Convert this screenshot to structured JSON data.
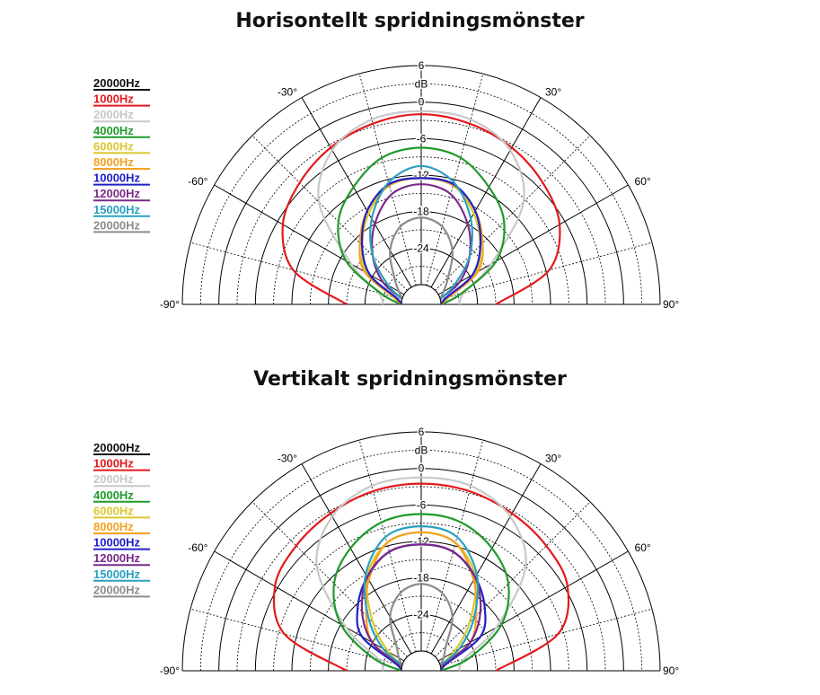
{
  "chart_data": [
    {
      "type": "polar",
      "title": "Horisontellt spridningsmönster",
      "radial_unit": "dB",
      "radial_ticks": [
        "6",
        "0",
        "-6",
        "-12",
        "-18",
        "-24"
      ],
      "angle_ticks": [
        "-90°",
        "-60°",
        "-30°",
        "30°",
        "60°",
        "90°"
      ],
      "rlim": [
        -30,
        6
      ],
      "angle_range_deg": [
        -90,
        90
      ],
      "legend_position": "top-left",
      "angles_deg": [
        -90,
        -75,
        -60,
        -45,
        -30,
        -15,
        0,
        15,
        30,
        45,
        60,
        75,
        90
      ],
      "series": [
        {
          "name": "20000Hz",
          "color": "#111111",
          "values": []
        },
        {
          "name": "1000Hz",
          "color": "#e31a1c",
          "values": [
            -21.0,
            -11.5,
            -7.0,
            -5.0,
            -3.5,
            -2.5,
            -2.0,
            -2.5,
            -3.5,
            -5.0,
            -7.0,
            -11.5,
            -21.0
          ]
        },
        {
          "name": "2000Hz",
          "color": "#c8c8c8",
          "values": [
            -27.0,
            -26.0,
            -20.0,
            -9.5,
            -4.0,
            -1.8,
            -1.5,
            -1.8,
            -4.0,
            -9.5,
            -20.0,
            -26.0,
            -27.0
          ]
        },
        {
          "name": "4000Hz",
          "color": "#1f9a2a",
          "values": [
            -30.0,
            -26.5,
            -19.0,
            -14.0,
            -11.0,
            -8.3,
            -7.5,
            -8.3,
            -11.0,
            -14.0,
            -19.0,
            -26.5,
            -30.0
          ]
        },
        {
          "name": "6000Hz",
          "color": "#d9c82c",
          "values": [
            -30.0,
            -29.0,
            -23.0,
            -19.5,
            -16.0,
            -13.0,
            -12.5,
            -13.0,
            -16.0,
            -19.5,
            -23.0,
            -29.0,
            -30.0
          ]
        },
        {
          "name": "8000Hz",
          "color": "#f5a021",
          "values": [
            -30.0,
            -28.5,
            -22.5,
            -19.0,
            -15.5,
            -13.0,
            -12.5,
            -13.0,
            -15.5,
            -19.0,
            -22.5,
            -28.5,
            -30.0
          ]
        },
        {
          "name": "10000Hz",
          "color": "#2020c8",
          "values": [
            -30.0,
            -29.0,
            -23.5,
            -19.5,
            -15.5,
            -12.8,
            -12.5,
            -12.8,
            -15.5,
            -19.5,
            -23.5,
            -29.0,
            -30.0
          ]
        },
        {
          "name": "12000Hz",
          "color": "#7a2a8a",
          "values": [
            -30.0,
            -30.0,
            -26.0,
            -22.0,
            -18.0,
            -14.5,
            -13.5,
            -14.5,
            -18.0,
            -22.0,
            -26.0,
            -30.0,
            -30.0
          ]
        },
        {
          "name": "15000Hz",
          "color": "#2a9fc0",
          "values": [
            -30.0,
            -30.0,
            -27.0,
            -22.0,
            -17.0,
            -12.5,
            -10.5,
            -12.5,
            -17.0,
            -22.0,
            -27.0,
            -30.0,
            -30.0
          ]
        },
        {
          "name": "20000Hz",
          "color": "#8c8c8c",
          "values": [
            -30.0,
            -30.0,
            -29.0,
            -27.0,
            -23.0,
            -20.0,
            -19.0,
            -20.0,
            -23.0,
            -27.0,
            -29.0,
            -30.0,
            -30.0
          ]
        }
      ]
    },
    {
      "type": "polar",
      "title": "Vertikalt spridningsmönster",
      "radial_unit": "dB",
      "radial_ticks": [
        "6",
        "0",
        "-6",
        "-12",
        "-18",
        "-24"
      ],
      "angle_ticks": [
        "-90°",
        "-60°",
        "-30°",
        "30°",
        "60°",
        "90°"
      ],
      "rlim": [
        -30,
        6
      ],
      "angle_range_deg": [
        -90,
        90
      ],
      "legend_position": "top-left",
      "angles_deg": [
        -90,
        -75,
        -60,
        -45,
        -30,
        -15,
        0,
        15,
        30,
        45,
        60,
        75,
        90
      ],
      "series": [
        {
          "name": "20000Hz",
          "color": "#111111",
          "values": []
        },
        {
          "name": "1000Hz",
          "color": "#e31a1c",
          "values": [
            -21.0,
            -10.0,
            -5.5,
            -4.2,
            -3.4,
            -2.7,
            -2.5,
            -2.7,
            -3.4,
            -4.2,
            -5.5,
            -10.0,
            -21.0
          ]
        },
        {
          "name": "2000Hz",
          "color": "#c8c8c8",
          "values": [
            -27.0,
            -26.0,
            -19.0,
            -9.0,
            -4.0,
            -1.8,
            -1.5,
            -1.8,
            -4.0,
            -9.0,
            -19.0,
            -26.0,
            -27.0
          ]
        },
        {
          "name": "4000Hz",
          "color": "#1f9a2a",
          "values": [
            -30.0,
            -25.0,
            -18.0,
            -13.0,
            -10.0,
            -8.0,
            -7.5,
            -8.0,
            -10.0,
            -13.0,
            -18.0,
            -25.0,
            -30.0
          ]
        },
        {
          "name": "6000Hz",
          "color": "#d9c82c",
          "values": [
            -30.0,
            -30.0,
            -27.0,
            -22.0,
            -15.5,
            -11.5,
            -10.5,
            -11.5,
            -15.5,
            -22.0,
            -27.0,
            -30.0,
            -30.0
          ]
        },
        {
          "name": "8000Hz",
          "color": "#f5a021",
          "values": [
            -30.0,
            -29.5,
            -24.0,
            -20.5,
            -16.0,
            -11.5,
            -10.5,
            -11.5,
            -16.0,
            -20.5,
            -24.0,
            -29.5,
            -30.0
          ]
        },
        {
          "name": "10000Hz",
          "color": "#2020c8",
          "values": [
            -30.0,
            -29.0,
            -22.0,
            -18.5,
            -15.5,
            -13.0,
            -12.5,
            -13.0,
            -15.5,
            -18.5,
            -22.0,
            -29.0,
            -30.0
          ]
        },
        {
          "name": "12000Hz",
          "color": "#7a2a8a",
          "values": [
            -30.0,
            -29.5,
            -24.0,
            -19.5,
            -15.5,
            -13.0,
            -12.5,
            -13.0,
            -15.5,
            -19.5,
            -24.0,
            -29.5,
            -30.0
          ]
        },
        {
          "name": "15000Hz",
          "color": "#2a9fc0",
          "values": [
            -30.0,
            -30.0,
            -26.0,
            -21.0,
            -15.0,
            -10.5,
            -9.5,
            -10.5,
            -15.0,
            -21.0,
            -26.0,
            -30.0,
            -30.0
          ]
        },
        {
          "name": "20000Hz",
          "color": "#8c8c8c",
          "values": [
            -30.0,
            -30.0,
            -29.0,
            -27.5,
            -23.0,
            -20.0,
            -19.0,
            -20.0,
            -23.0,
            -27.5,
            -29.0,
            -30.0,
            -30.0
          ]
        }
      ]
    }
  ]
}
